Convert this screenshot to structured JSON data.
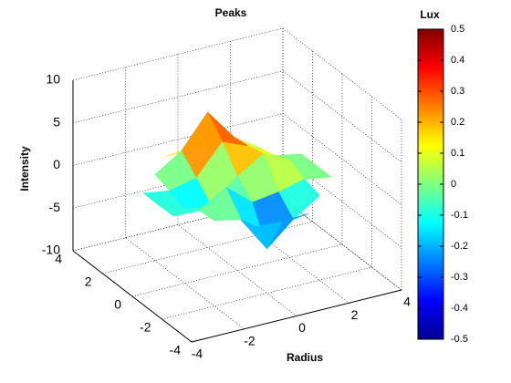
{
  "chart_data": {
    "type": "surface",
    "title": "Peaks",
    "xlabel": "Radius",
    "zlabel": "Intensity",
    "x": [
      -3,
      -2,
      -1,
      0,
      1,
      2,
      3
    ],
    "y": [
      -3,
      -2,
      -1,
      0,
      1,
      2,
      3
    ],
    "z": [
      [
        null,
        null,
        -0.11,
        -0.3,
        -0.11,
        null,
        null
      ],
      [
        null,
        0.05,
        -0.58,
        -4.76,
        -2.09,
        -0.06,
        null
      ],
      [
        0,
        -0.13,
        1.85,
        -0.72,
        -0.27,
        0.5,
        0
      ],
      [
        -0.04,
        -1.33,
        -1.65,
        0.98,
        2.94,
        1.41,
        0.03
      ],
      [
        -0.01,
        -0.48,
        0.23,
        3.69,
        2.44,
        0.58,
        0.01
      ],
      [
        null,
        0.08,
        2.08,
        5.85,
        2.2,
        0.13,
        null
      ],
      [
        null,
        null,
        0.11,
        0.3,
        0.11,
        null,
        null
      ]
    ],
    "xlim": [
      -4,
      4
    ],
    "xticks": [
      -4,
      -2,
      0,
      2,
      4
    ],
    "ylim": [
      -4,
      4
    ],
    "yticks": [
      -4,
      -2,
      0,
      2,
      4
    ],
    "zlim": [
      -10,
      10
    ],
    "zticks": [
      -10,
      -5,
      0,
      5,
      10
    ],
    "grid": true,
    "colorbar": {
      "label": "Lux",
      "colormap": "jet",
      "clim": [
        -0.5,
        0.5
      ],
      "ticks": [
        0.5,
        0.4,
        0.3,
        0.2,
        0.1,
        0,
        -0.1,
        -0.2,
        -0.3,
        -0.4,
        -0.5
      ]
    }
  }
}
